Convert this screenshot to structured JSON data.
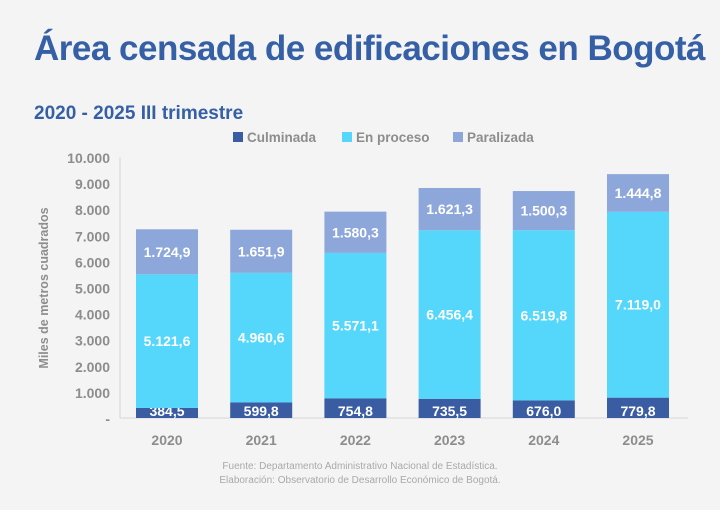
{
  "chart_data": {
    "type": "bar",
    "stacked": true,
    "title": "Área censada de edificaciones en Bogotá",
    "subtitle": "2020 - 2025 III trimestre",
    "ylabel": "Miles de metros cuadrados",
    "xlabel": "",
    "ylim": [
      0,
      10000
    ],
    "yticks": [
      "-",
      "1.000",
      "2.000",
      "3.000",
      "4.000",
      "5.000",
      "6.000",
      "7.000",
      "8.000",
      "9.000",
      "10.000"
    ],
    "grid": false,
    "legend": "top",
    "categories": [
      "2020",
      "2021",
      "2022",
      "2023",
      "2024",
      "2025"
    ],
    "series": [
      {
        "name": "Culminada",
        "color": "#3a5ca3",
        "values": [
          384.5,
          599.8,
          754.8,
          735.5,
          676.0,
          779.8
        ],
        "labels": [
          "384,5",
          "599,8",
          "754,8",
          "735,5",
          "676,0",
          "779,8"
        ]
      },
      {
        "name": "En proceso",
        "color": "#55d7fb",
        "values": [
          5121.6,
          4960.6,
          5571.1,
          6456.4,
          6519.8,
          7119.0
        ],
        "labels": [
          "5.121,6",
          "4.960,6",
          "5.571,1",
          "6.456,4",
          "6.519,8",
          "7.119,0"
        ]
      },
      {
        "name": "Paralizada",
        "color": "#8ea7da",
        "values": [
          1724.9,
          1651.9,
          1580.3,
          1621.3,
          1500.3,
          1444.8
        ],
        "labels": [
          "1.724,9",
          "1.651,9",
          "1.580,3",
          "1.621,3",
          "1.500,3",
          "1.444,8"
        ]
      }
    ]
  },
  "footer": {
    "source": "Fuente: Departamento Administrativo Nacional de Estadística.",
    "credit": "Elaboración: Observatorio de Desarrollo Económico de Bogotá."
  }
}
